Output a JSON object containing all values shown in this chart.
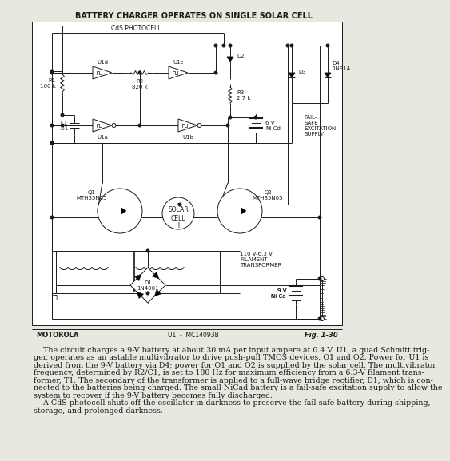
{
  "title": "BATTERY CHARGER OPERATES ON SINGLE SOLAR CELL",
  "title_fontsize": 7.0,
  "fig_bg": "#e8e8e0",
  "box_bg": "#e8e8e0",
  "line_color": "#1a1a1a",
  "text_color": "#1a1a1a",
  "footer_left": "MOTOROLA",
  "footer_center": "U1  -  MC14093B",
  "footer_right": "Fig. 1-30",
  "body_line1": "    The circuit charges a 9-V battery at about 30 mA per input ampere at 0.4 V. U1, a quad Schmitt trig-",
  "body_line2": "ger, operates as an astable multivibrator to drive push-pull TMOS devices, Q1 and Q2. Power for U1 is",
  "body_line3": "derived from the 9-V battery via D4; power for Q1 and Q2 is supplied by the solar cell. The multivibrator",
  "body_line4": "frequency, determined by R2/C1, is set to 180 Hz for maximum efficiency from a 6.3-V filament trans-",
  "body_line5": "former, T1. The secondary of the transformer is applied to a full-wave bridge rectifier, D1, which is con-",
  "body_line6": "nected to the batteries being charged. The small NiCad battery is a fail-safe excitation supply to allow the",
  "body_line7": "system to recover if the 9-V battery becomes fully discharged.",
  "body_line8": "    A CdS photocell shuts off the oscillator in darkness to preserve the fail-safe battery during shipping,",
  "body_line9": "storage, and prolonged darkness.",
  "body_fontsize": 6.8,
  "lw": 0.7
}
